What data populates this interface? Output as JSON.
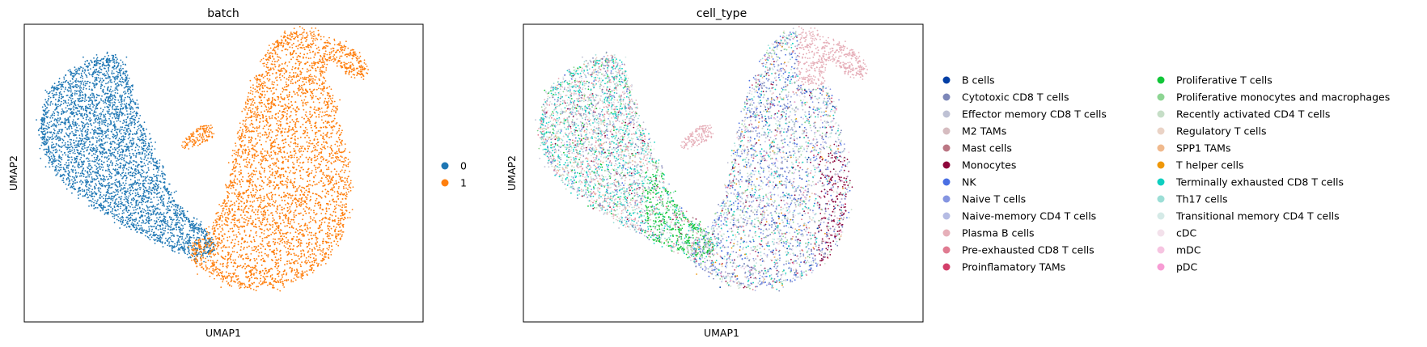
{
  "chart_data": [
    {
      "type": "scatter",
      "title": "batch",
      "xlabel": "UMAP1",
      "ylabel": "UMAP2",
      "legend_position": "right",
      "series": [
        {
          "name": "0",
          "color": "#1f77b4"
        },
        {
          "name": "1",
          "color": "#ff7f0e"
        }
      ]
    },
    {
      "type": "scatter",
      "title": "cell_type",
      "xlabel": "UMAP1",
      "ylabel": "UMAP2",
      "legend_position": "right",
      "series": [
        {
          "name": "B cells",
          "color": "#023fa5"
        },
        {
          "name": "Cytotoxic CD8 T cells",
          "color": "#7d87b9"
        },
        {
          "name": "Effector memory CD8 T cells",
          "color": "#bec1d4"
        },
        {
          "name": "M2 TAMs",
          "color": "#d6bcc0"
        },
        {
          "name": "Mast cells",
          "color": "#bb7784"
        },
        {
          "name": "Monocytes",
          "color": "#8e063b"
        },
        {
          "name": "NK",
          "color": "#4a6fe3"
        },
        {
          "name": "Naive T cells",
          "color": "#8595e1"
        },
        {
          "name": "Naive-memory CD4 T cells",
          "color": "#b5bbe3"
        },
        {
          "name": "Plasma B cells",
          "color": "#e6afb9"
        },
        {
          "name": "Pre-exhausted CD8 T cells",
          "color": "#e07b91"
        },
        {
          "name": "Proinflamatory TAMs",
          "color": "#d33f6a"
        },
        {
          "name": "Proliferative T cells",
          "color": "#11c638"
        },
        {
          "name": "Proliferative monocytes and macrophages",
          "color": "#8dd593"
        },
        {
          "name": "Recently activated CD4 T cells",
          "color": "#c6dec7"
        },
        {
          "name": "Regulatory T cells",
          "color": "#ead3c6"
        },
        {
          "name": "SPP1 TAMs",
          "color": "#f0b98d"
        },
        {
          "name": "T helper cells",
          "color": "#ef9708"
        },
        {
          "name": "Terminally exhausted CD8 T cells",
          "color": "#0fcfc0"
        },
        {
          "name": "Th17 cells",
          "color": "#9cded6"
        },
        {
          "name": "Transitional memory CD4 T cells",
          "color": "#d5eae7"
        },
        {
          "name": "cDC",
          "color": "#f3e1eb"
        },
        {
          "name": "mDC",
          "color": "#f6c4e1"
        },
        {
          "name": "pDC",
          "color": "#f79cd4"
        }
      ]
    }
  ]
}
